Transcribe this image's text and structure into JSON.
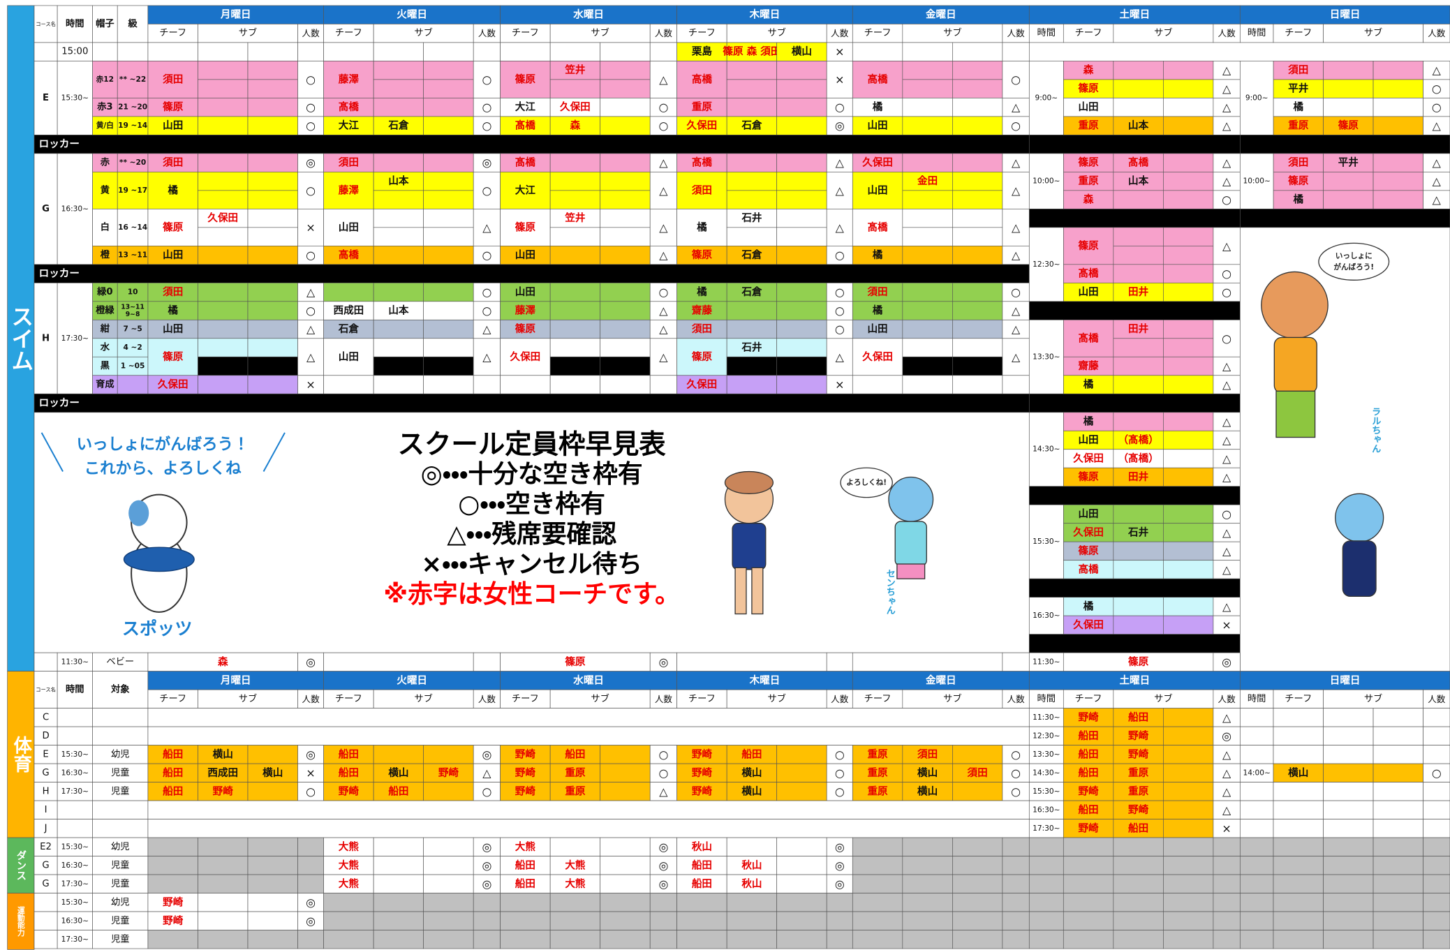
{
  "female_coaches": [
    "須田",
    "篠原",
    "笠井",
    "高橋",
    "髙橋",
    "藤澤",
    "久保田",
    "重原",
    "森",
    "齋藤",
    "金田",
    "田井",
    "秋山",
    "大熊",
    "野崎",
    "船田"
  ],
  "sidebar": {
    "swim": "スイム",
    "taiiku": "体育",
    "dance": "ダンス",
    "undo": "運動能力"
  },
  "days": [
    "月曜日",
    "火曜日",
    "水曜日",
    "木曜日",
    "金曜日",
    "土曜日",
    "日曜日"
  ],
  "header": {
    "course": "コース名",
    "time": "時間",
    "cap": "帽子",
    "level": "級",
    "chief": "チーフ",
    "sub": "サブ",
    "count": "人数",
    "target": "対象"
  },
  "swim": {
    "locker": "ロッカー",
    "pre": {
      "time": "15:00",
      "days": [
        null,
        null,
        null,
        {
          "c": "栗島",
          "s": "篠原 森 須田",
          "s2": "横山",
          "n": "×",
          "bg": "#ffff00"
        },
        null
      ]
    },
    "blocks": [
      {
        "course": "E",
        "time": "15:30~",
        "rows": [
          {
            "cap": "赤12",
            "level": [
              "** ~22"
            ],
            "bg": "#f7a1cb",
            "days": [
              {
                "c": "須田",
                "n": "○"
              },
              {
                "c": "藤澤",
                "n": "○"
              },
              {
                "c": "篠原",
                "s": "笠井",
                "n": "△"
              },
              {
                "c": "高橋",
                "n": "×"
              },
              {
                "c": "高橋",
                "n": "○"
              }
            ]
          },
          {
            "cap": "赤3",
            "level": [
              "21 ~20"
            ],
            "bg": "#f7a1cb",
            "days": [
              {
                "c": "篠原",
                "n": "○"
              },
              {
                "c": "髙橋",
                "n": "○"
              },
              {
                "c": "大江",
                "s": "久保田",
                "n": "○",
                "bg": "#ffffff"
              },
              {
                "c": "重原",
                "n": "○"
              },
              {
                "c": "橘",
                "n": "△",
                "bg": "#ffffff"
              }
            ]
          },
          {
            "cap": "黄/白",
            "level": [
              "19 ~14"
            ],
            "bg": "#ffff00",
            "days": [
              {
                "c": "山田",
                "n": "○"
              },
              {
                "c": "大江",
                "s": "石倉",
                "n": "○"
              },
              {
                "c": "髙橋",
                "s": "森",
                "n": "○"
              },
              {
                "c": "久保田",
                "s": "石倉",
                "n": "◎"
              },
              {
                "c": "山田",
                "n": "○"
              }
            ]
          }
        ]
      },
      {
        "course": "G",
        "time": "16:30~",
        "rows": [
          {
            "cap": "赤",
            "level": [
              "** ~20"
            ],
            "bg": "#f7a1cb",
            "days": [
              {
                "c": "須田",
                "n": "◎"
              },
              {
                "c": "須田",
                "n": "◎"
              },
              {
                "c": "髙橋",
                "n": "△"
              },
              {
                "c": "髙橋",
                "n": "△"
              },
              {
                "c": "久保田",
                "n": "△"
              }
            ]
          },
          {
            "cap": "黄",
            "level": [
              "19 ~17"
            ],
            "bg": "#ffff00",
            "days": [
              {
                "c": "橘",
                "n": "○"
              },
              {
                "c": "藤澤",
                "s": "山本",
                "n": "○"
              },
              {
                "c": "大江",
                "n": "△"
              },
              {
                "c": "須田",
                "n": "△"
              },
              {
                "c": "山田",
                "s": "金田",
                "n": "△"
              }
            ]
          },
          {
            "cap": "白",
            "level": [
              "16 ~14"
            ],
            "bg": "#ffffff",
            "days": [
              {
                "c": "篠原",
                "s": "久保田",
                "n": "×"
              },
              {
                "c": "山田",
                "n": "△"
              },
              {
                "c": "篠原",
                "s": "笠井",
                "n": "△"
              },
              {
                "c": "橘",
                "s": "石井",
                "n": "△"
              },
              {
                "c": "髙橋",
                "n": "△"
              }
            ]
          },
          {
            "cap": "橙",
            "level": [
              "13 ~11"
            ],
            "bg": "#ffc000",
            "days": [
              {
                "c": "山田",
                "n": "○"
              },
              {
                "c": "高橋",
                "n": "○"
              },
              {
                "c": "山田",
                "n": "△"
              },
              {
                "c": "篠原",
                "s": "石倉",
                "n": "○"
              },
              {
                "c": "橘",
                "n": "△"
              }
            ]
          }
        ]
      },
      {
        "course": "H",
        "time": "17:30~",
        "rows": [
          {
            "cap": "緑0",
            "level": [
              "10"
            ],
            "bg": "#92d050",
            "days": [
              {
                "c": "須田",
                "n": "△"
              },
              {
                "n": "○"
              },
              {
                "c": "山田",
                "n": "○"
              },
              {
                "c": "橘",
                "s": "石倉",
                "n": "○"
              },
              {
                "c": "須田",
                "n": "○"
              }
            ]
          },
          {
            "cap": "橙緑",
            "level": [
              "13~11",
              "9~8"
            ],
            "bg": "#92d050",
            "days": [
              {
                "c": "橘",
                "n": "○"
              },
              {
                "c": "西成田",
                "s": "山本",
                "n": "○",
                "bg": "#ffffff"
              },
              {
                "c": "藤澤",
                "n": "△"
              },
              {
                "c": "齋藤",
                "n": "○"
              },
              {
                "c": "橘",
                "n": "△"
              }
            ]
          },
          {
            "cap": "紺",
            "level": [
              "7 ~5"
            ],
            "bg": "#b3bfd3",
            "days": [
              {
                "c": "山田",
                "n": "△"
              },
              {
                "c": "石倉",
                "n": "△"
              },
              {
                "c": "篠原",
                "n": "△"
              },
              {
                "c": "須田",
                "n": "○"
              },
              {
                "c": "山田",
                "n": "△"
              }
            ]
          },
          {
            "cap": "水",
            "level": [
              "4 ~2"
            ],
            "cap2": "黒",
            "level2": [
              "1 ~05"
            ],
            "bg": "#ccf7fb",
            "days": [
              {
                "c": "篠原",
                "n": "△"
              },
              {
                "c": "山田",
                "n": "△",
                "bg": "#ffffff"
              },
              {
                "c": "久保田",
                "n": "△",
                "bg": "#ffffff"
              },
              {
                "c": "篠原",
                "s": "石井",
                "n": "△"
              },
              {
                "c": "久保田",
                "n": "△",
                "bg": "#ffffff"
              }
            ]
          },
          {
            "cap": "育成",
            "bg": "#c6a0f6",
            "days": [
              {
                "c": "久保田",
                "n": "×"
              },
              null,
              null,
              {
                "c": "久保田",
                "n": "×"
              },
              null
            ]
          }
        ]
      }
    ],
    "weekend": [
      {
        "groups": [
          {
            "time": "9:00~",
            "rows": [
              {
                "c": "森",
                "n": "△",
                "bg": "#f7a1cb"
              },
              {
                "c": "篠原",
                "n": "△",
                "bg": "#ffff00"
              },
              {
                "c": "山田",
                "n": "△",
                "bg": "#ffffff"
              },
              {
                "c": "重原",
                "s": "山本",
                "n": "△",
                "bg": "#ffc000"
              }
            ]
          },
          {
            "time": "10:00~",
            "rows": [
              {
                "c": "篠原",
                "s": "髙橋",
                "n": "△",
                "bg": "#f7a1cb"
              },
              {
                "c": "重原",
                "s": "山本",
                "n": "△",
                "bg": "#f7a1cb"
              },
              {
                "c": "森",
                "n": "○",
                "bg": "#f7a1cb"
              }
            ]
          },
          {
            "time": "12:30~",
            "rows": [
              {
                "c": "篠原",
                "n": "△",
                "bg": "#f7a1cb"
              },
              {
                "c": "髙橋",
                "n": "○",
                "bg": "#f7a1cb"
              },
              {
                "c": "山田",
                "s": "田井",
                "n": "○",
                "bg": "#ffff00"
              }
            ]
          },
          {
            "time": "13:30~",
            "rows": [
              {
                "c": "髙橋",
                "s": "田井",
                "n": "○",
                "bg": "#f7a1cb"
              },
              {
                "c": "齋藤",
                "n": "△",
                "bg": "#f7a1cb"
              },
              {
                "c": "橘",
                "n": "△",
                "bg": "#ffff00"
              }
            ]
          },
          {
            "time": "14:30~",
            "rows": [
              {
                "c": "橘",
                "n": "△",
                "bg": "#f7a1cb"
              },
              {
                "c": "山田",
                "s": "（髙橋）",
                "n": "△",
                "bg": "#ffff00"
              },
              {
                "c": "久保田",
                "s": "（髙橋）",
                "n": "△",
                "bg": "#ffffff"
              },
              {
                "c": "篠原",
                "s": "田井",
                "n": "△",
                "bg": "#ffc000"
              }
            ]
          },
          {
            "time": "15:30~",
            "rows": [
              {
                "c": "山田",
                "n": "○",
                "bg": "#92d050"
              },
              {
                "c": "久保田",
                "s": "石井",
                "n": "△",
                "bg": "#92d050"
              },
              {
                "c": "篠原",
                "n": "△",
                "bg": "#b3bfd3"
              },
              {
                "c": "高橋",
                "n": "△",
                "bg": "#ccf7fb"
              }
            ]
          },
          {
            "time": "16:30~",
            "rows": [
              {
                "c": "橘",
                "n": "△",
                "bg": "#ccf7fb"
              },
              {
                "c": "久保田",
                "n": "×",
                "bg": "#c6a0f6"
              }
            ]
          }
        ]
      },
      {
        "groups": [
          {
            "time": "9:00~",
            "rows": [
              {
                "c": "須田",
                "n": "△",
                "bg": "#f7a1cb"
              },
              {
                "c": "平井",
                "n": "○",
                "bg": "#ffff00"
              },
              {
                "c": "橘",
                "n": "○",
                "bg": "#ffffff"
              },
              {
                "c": "重原",
                "s": "篠原",
                "n": "△",
                "bg": "#ffc000"
              }
            ]
          },
          {
            "time": "10:00~",
            "rows": [
              {
                "c": "須田",
                "s": "平井",
                "n": "△",
                "bg": "#f7a1cb"
              },
              {
                "c": "篠原",
                "n": "△",
                "bg": "#f7a1cb"
              },
              {
                "c": "橘",
                "n": "△",
                "bg": "#f7a1cb"
              }
            ]
          }
        ]
      }
    ],
    "baby": {
      "time": "11:30~",
      "cap": "ベビー",
      "days": [
        {
          "c": "森",
          "n": "◎"
        },
        null,
        {
          "c": "篠原",
          "n": "◎"
        },
        null,
        null
      ],
      "sat": {
        "time": "11:30~",
        "c": "篠原",
        "n": "◎"
      }
    },
    "notice": {
      "greeting": [
        "いっしょにがんばろう！",
        "これから、よろしくね"
      ],
      "dog": "スポッツ",
      "title": "スクール定員枠早見表",
      "legend": [
        "◎・・・十分な空き枠有",
        "○・・・空き枠有",
        "△・・・残席要確認",
        "×・・・キャンセル待ち"
      ],
      "note": "※赤字は女性コーチです。",
      "bubble1": "よろしくね!",
      "bubble2": [
        "いっしょに",
        "がんばろう!"
      ],
      "sen": "センちゃん",
      "ral": "ラルちゃん"
    }
  },
  "taiiku": {
    "bg": "#ffc000",
    "rows": [
      {
        "course": "C",
        "days": [
          null,
          null,
          null,
          null,
          null
        ],
        "sat": {
          "time": "11:30~",
          "c": "野崎",
          "s": "船田",
          "n": "△"
        },
        "sun": null
      },
      {
        "course": "D",
        "days": [
          null,
          null,
          null,
          null,
          null
        ],
        "sat": {
          "time": "12:30~",
          "c": "船田",
          "s": "野崎",
          "n": "◎"
        },
        "sun": null
      },
      {
        "course": "E",
        "time": "15:30~",
        "target": "幼児",
        "days": [
          {
            "c": "船田",
            "s": "横山",
            "n": "◎"
          },
          {
            "c": "船田",
            "n": "◎"
          },
          {
            "c": "野崎",
            "s": "船田",
            "n": "○"
          },
          {
            "c": "野崎",
            "s": "船田",
            "n": "○"
          },
          {
            "c": "重原",
            "s": "須田",
            "n": "○"
          }
        ],
        "sat": {
          "time": "13:30~",
          "c": "船田",
          "s": "野崎",
          "n": "△"
        },
        "sun": null
      },
      {
        "course": "G",
        "time": "16:30~",
        "target": "児童",
        "days": [
          {
            "c": "船田",
            "s": "西成田",
            "s2": "横山",
            "n": "×"
          },
          {
            "c": "船田",
            "s": "横山",
            "s2": "野崎",
            "n": "△"
          },
          {
            "c": "野崎",
            "s": "重原",
            "n": "○"
          },
          {
            "c": "野崎",
            "s": "横山",
            "n": "○"
          },
          {
            "c": "重原",
            "s": "横山",
            "s2": "須田",
            "n": "○"
          }
        ],
        "sat": {
          "time": "14:30~",
          "c": "船田",
          "s": "重原",
          "n": "△"
        },
        "sun": {
          "time": "14:00~",
          "c": "横山",
          "n": "○"
        }
      },
      {
        "course": "H",
        "time": "17:30~",
        "target": "児童",
        "days": [
          {
            "c": "船田",
            "s": "野崎",
            "n": "○"
          },
          {
            "c": "野崎",
            "s": "船田",
            "n": "○"
          },
          {
            "c": "野崎",
            "s": "重原",
            "n": "△"
          },
          {
            "c": "野崎",
            "s": "横山",
            "n": "○"
          },
          {
            "c": "重原",
            "s": "横山",
            "n": "○"
          }
        ],
        "sat": {
          "time": "15:30~",
          "c": "野崎",
          "s": "重原",
          "n": "△"
        },
        "sun": null
      },
      {
        "course": "I",
        "days": [
          null,
          null,
          null,
          null,
          null
        ],
        "sat": {
          "time": "16:30~",
          "c": "船田",
          "s": "野崎",
          "n": "△"
        },
        "sun": null
      },
      {
        "course": "J",
        "days": [
          null,
          null,
          null,
          null,
          null
        ],
        "sat": {
          "time": "17:30~",
          "c": "野崎",
          "s": "船田",
          "n": "×"
        },
        "sun": null
      }
    ]
  },
  "dance": {
    "empty": "#c0c0c0",
    "rows": [
      {
        "course": "E2",
        "time": "15:30~",
        "target": "幼児",
        "days": [
          null,
          {
            "c": "大熊",
            "n": "◎"
          },
          {
            "c": "大熊",
            "n": "◎"
          },
          {
            "c": "秋山",
            "n": "◎"
          },
          null
        ]
      },
      {
        "course": "G",
        "time": "16:30~",
        "target": "児童",
        "days": [
          null,
          {
            "c": "大熊",
            "n": "◎"
          },
          {
            "c": "船田",
            "s": "大熊",
            "n": "◎"
          },
          {
            "c": "船田",
            "s": "秋山",
            "n": "◎"
          },
          null
        ]
      },
      {
        "course": "G",
        "time": "17:30~",
        "target": "児童",
        "days": [
          null,
          {
            "c": "大熊",
            "n": "◎"
          },
          {
            "c": "船田",
            "s": "大熊",
            "n": "◎"
          },
          {
            "c": "船田",
            "s": "秋山",
            "n": "◎"
          },
          null
        ]
      }
    ]
  },
  "undo": {
    "empty": "#c0c0c0",
    "rows": [
      {
        "time": "15:30~",
        "target": "幼児",
        "days": [
          {
            "c": "野崎",
            "n": "◎"
          },
          null,
          null,
          null,
          null
        ]
      },
      {
        "time": "16:30~",
        "target": "児童",
        "days": [
          {
            "c": "野崎",
            "n": "◎"
          },
          null,
          null,
          null,
          null
        ]
      },
      {
        "time": "17:30~",
        "target": "児童",
        "days": [
          null,
          null,
          null,
          null,
          null
        ]
      }
    ]
  }
}
